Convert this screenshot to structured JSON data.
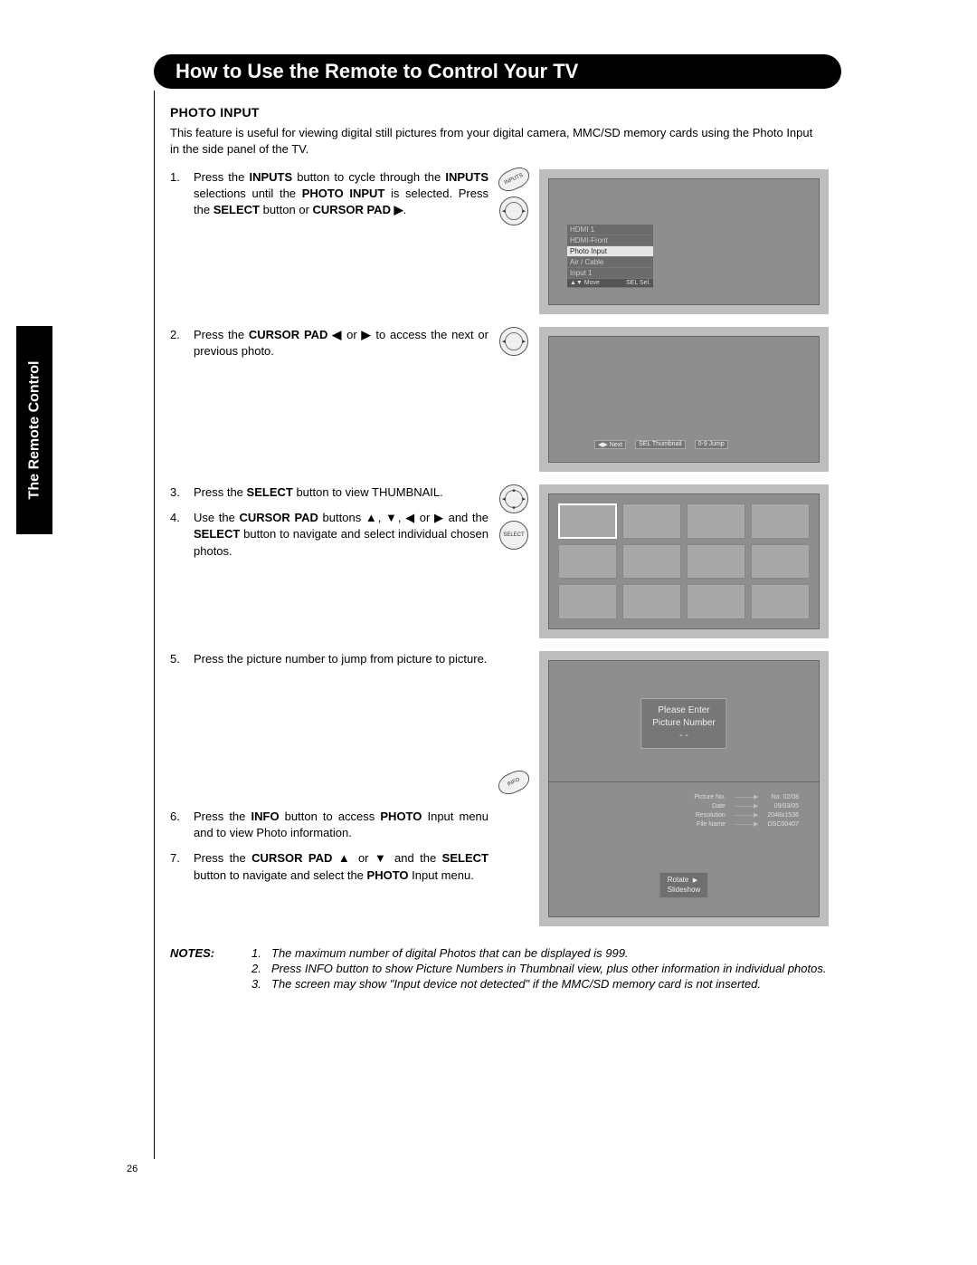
{
  "side_tab": "The Remote Control",
  "header": "How to Use the Remote to Control Your TV",
  "section_title": "PHOTO INPUT",
  "intro": "This feature is useful for viewing digital still pictures from your digital camera, MMC/SD memory cards using the Photo Input in the side panel of the TV.",
  "steps": {
    "s1": {
      "n": "1.",
      "txt_pre": "Press the ",
      "b1": "INPUTS",
      "txt_mid": " button to cycle through the ",
      "b2": "INPUTS",
      "txt_mid2": " selections until the ",
      "b3": "PHOTO INPUT",
      "txt_mid3": " is selected.   Press  the  ",
      "b4": "SELECT",
      "txt_mid4": "  button  or ",
      "b5": "CURSOR PAD ▶",
      "tail": "."
    },
    "s2": {
      "n": "2.",
      "txt_pre": "Press the ",
      "b1": "CURSOR PAD ◀",
      "txt_mid": " or ",
      "b2": "▶",
      "txt_tail": " to access the next or previous photo."
    },
    "s3": {
      "n": "3.",
      "txt_pre": "Press the ",
      "b1": "SELECT",
      "txt_tail": " button to view THUMBNAIL."
    },
    "s4": {
      "n": "4.",
      "txt_pre": "Use the ",
      "b1": "CURSOR PAD",
      "txt_mid": " buttons ▲, ▼, ◀ or ▶ and the ",
      "b2": "SELECT",
      "txt_tail": " button to navigate and select individual chosen photos."
    },
    "s5": {
      "n": "5.",
      "txt": "Press the picture number to jump from picture to picture."
    },
    "s6": {
      "n": "6.",
      "txt_pre": "Press the ",
      "b1": "INFO",
      "txt_mid": " button to access ",
      "b2": "PHOTO",
      "txt_tail": " Input menu and to view Photo information."
    },
    "s7": {
      "n": "7.",
      "txt_pre": "Press  the  ",
      "b1": "CURSOR  PAD  ▲",
      "txt_mid": "  or  ",
      "b2": "▼",
      "txt_mid2": "  and  the ",
      "b3": "SELECT",
      "txt_mid3": " button to navigate and select the ",
      "b4": "PHOTO",
      "txt_tail": " Input menu."
    }
  },
  "screen1": {
    "items": [
      "HDMI 1",
      "HDMI-Front",
      "Photo Input",
      "Air / Cable",
      "Input 1"
    ],
    "selected_index": 2,
    "footer_left": "▲▼ Move",
    "footer_right": "SEL Sel."
  },
  "screen2": {
    "chips": [
      "◀▶ Next",
      "SEL Thumbnail",
      "0-9 Jump"
    ]
  },
  "screen3": {
    "cols": 4,
    "rows": 3,
    "selected_index": 0,
    "button_label": "SELECT"
  },
  "screen4": {
    "line1": "Please Enter",
    "line2": "Picture Number",
    "line3": "- -"
  },
  "screen5": {
    "btn": "INFO",
    "info": [
      {
        "k": "Picture No.",
        "v": "No. 02/08"
      },
      {
        "k": "Date",
        "v": "09/03/05"
      },
      {
        "k": "Resolution",
        "v": "2048x1536"
      },
      {
        "k": "File Name",
        "v": "DSC00407"
      }
    ],
    "menu": [
      "Rotate",
      "Slideshow"
    ],
    "menu_arrow": "▶"
  },
  "notes_label": "NOTES:",
  "notes": [
    {
      "n": "1.",
      "t": "The maximum number of digital Photos that can be displayed is 999."
    },
    {
      "n": "2.",
      "t": "Press INFO button to show Picture Numbers in Thumbnail view, plus other information in individual photos."
    },
    {
      "n": "3.",
      "t": "The screen may show \"Input device not detected\" if the MMC/SD memory card is not inserted."
    }
  ],
  "page_number": "26",
  "buttons": {
    "inputs": "INPUTS"
  },
  "colors": {
    "panel": "#bdbdbd",
    "screen": "#8e8e8e"
  }
}
